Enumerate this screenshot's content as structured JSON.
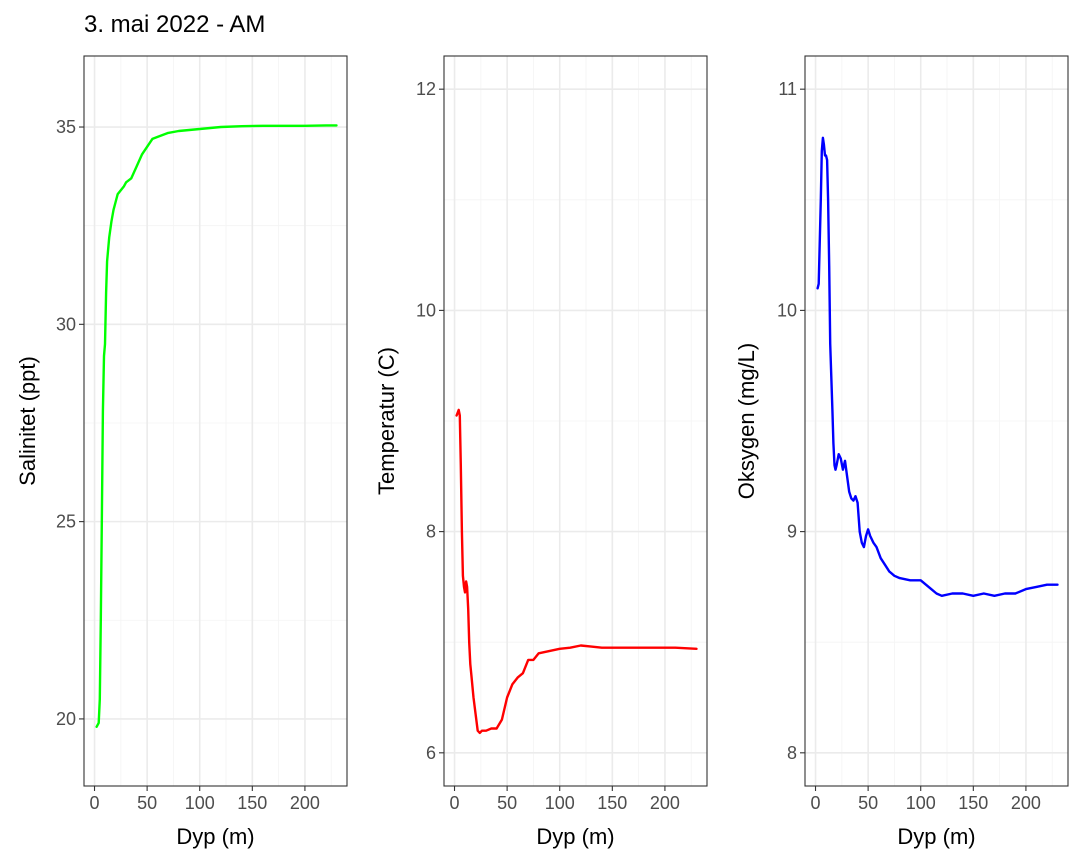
{
  "title": "3. mai 2022 - AM",
  "chart_data": [
    {
      "type": "line",
      "xlabel": "Dyp (m)",
      "ylabel": "Salinitet (ppt)",
      "xlim": [
        -10,
        240
      ],
      "ylim": [
        18.3,
        36.8
      ],
      "x_ticks": [
        0,
        50,
        100,
        150,
        200
      ],
      "y_ticks": [
        20,
        25,
        30,
        35
      ],
      "color": "#00ff00",
      "grid": true,
      "series": [
        {
          "x": [
            2,
            4,
            5,
            6,
            7,
            8,
            9,
            10,
            11,
            12,
            14,
            16,
            18,
            20,
            22,
            25,
            28,
            30,
            35,
            40,
            45,
            50,
            55,
            60,
            70,
            80,
            100,
            120,
            140,
            160,
            180,
            200,
            220,
            230
          ],
          "y": [
            19.8,
            19.9,
            20.5,
            22.5,
            25.2,
            27.8,
            29.2,
            29.5,
            30.8,
            31.6,
            32.2,
            32.6,
            32.9,
            33.1,
            33.3,
            33.4,
            33.5,
            33.6,
            33.7,
            34.0,
            34.3,
            34.5,
            34.7,
            34.75,
            34.85,
            34.9,
            34.95,
            35.0,
            35.02,
            35.03,
            35.03,
            35.03,
            35.04,
            35.04
          ]
        }
      ]
    },
    {
      "type": "line",
      "xlabel": "Dyp (m)",
      "ylabel": "Temperatur (C)",
      "xlim": [
        -10,
        240
      ],
      "ylim": [
        5.7,
        12.3
      ],
      "x_ticks": [
        0,
        50,
        100,
        150,
        200
      ],
      "y_ticks": [
        6,
        8,
        10,
        12
      ],
      "color": "#ff0000",
      "grid": true,
      "series": [
        {
          "x": [
            2,
            4,
            5,
            6,
            7,
            8,
            9,
            10,
            11,
            12,
            13,
            14,
            15,
            16,
            18,
            20,
            22,
            24,
            26,
            30,
            35,
            40,
            45,
            50,
            55,
            60,
            65,
            70,
            75,
            80,
            90,
            100,
            110,
            120,
            130,
            140,
            150,
            170,
            190,
            210,
            230
          ],
          "y": [
            9.05,
            9.1,
            9.05,
            8.6,
            8.0,
            7.6,
            7.5,
            7.45,
            7.55,
            7.5,
            7.3,
            7.0,
            6.8,
            6.7,
            6.5,
            6.35,
            6.2,
            6.18,
            6.2,
            6.2,
            6.22,
            6.22,
            6.3,
            6.5,
            6.62,
            6.68,
            6.72,
            6.84,
            6.84,
            6.9,
            6.92,
            6.94,
            6.95,
            6.97,
            6.96,
            6.95,
            6.95,
            6.95,
            6.95,
            6.95,
            6.94
          ]
        }
      ]
    },
    {
      "type": "line",
      "xlabel": "Dyp (m)",
      "ylabel": "Oksygen (mg/L)",
      "xlim": [
        -10,
        240
      ],
      "ylim": [
        7.85,
        11.15
      ],
      "x_ticks": [
        0,
        50,
        100,
        150,
        200
      ],
      "y_ticks": [
        8,
        9,
        10,
        11
      ],
      "color": "#0000ff",
      "grid": true,
      "series": [
        {
          "x": [
            2,
            3,
            4,
            5,
            6,
            7,
            8,
            9,
            10,
            11,
            12,
            13,
            14,
            15,
            16,
            17,
            18,
            19,
            20,
            22,
            24,
            26,
            28,
            30,
            32,
            34,
            36,
            38,
            40,
            42,
            44,
            46,
            48,
            50,
            52,
            55,
            58,
            62,
            66,
            70,
            75,
            80,
            90,
            100,
            110,
            115,
            120,
            130,
            140,
            150,
            160,
            170,
            180,
            190,
            200,
            210,
            220,
            230
          ],
          "y": [
            10.1,
            10.12,
            10.3,
            10.5,
            10.72,
            10.78,
            10.75,
            10.7,
            10.7,
            10.68,
            10.5,
            10.2,
            9.85,
            9.7,
            9.55,
            9.4,
            9.3,
            9.28,
            9.3,
            9.35,
            9.33,
            9.28,
            9.32,
            9.25,
            9.18,
            9.15,
            9.14,
            9.16,
            9.13,
            9.0,
            8.95,
            8.93,
            8.98,
            9.01,
            8.98,
            8.95,
            8.93,
            8.88,
            8.85,
            8.82,
            8.8,
            8.79,
            8.78,
            8.78,
            8.74,
            8.72,
            8.71,
            8.72,
            8.72,
            8.71,
            8.72,
            8.71,
            8.72,
            8.72,
            8.74,
            8.75,
            8.76,
            8.76
          ]
        }
      ]
    }
  ]
}
